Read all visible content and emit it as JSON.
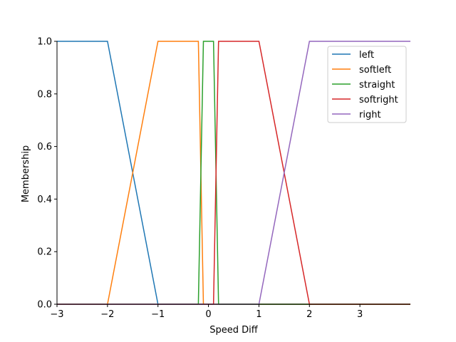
{
  "chart_data": {
    "type": "line",
    "title": "",
    "xlabel": "Speed Diff",
    "ylabel": "Membership",
    "xlim": [
      -3,
      4
    ],
    "ylim": [
      0,
      1
    ],
    "xticks": [
      -3,
      -2,
      -1,
      0,
      1,
      2,
      3
    ],
    "xtick_labels": [
      "−3",
      "−2",
      "−1",
      "0",
      "1",
      "2",
      "3"
    ],
    "yticks": [
      0,
      0.2,
      0.4,
      0.6,
      0.8,
      1.0
    ],
    "ytick_labels": [
      "0.0",
      "0.2",
      "0.4",
      "0.6",
      "0.8",
      "1.0"
    ],
    "grid": false,
    "legend_position": "top-right",
    "series": [
      {
        "name": "left",
        "color": "#1f77b4",
        "points": [
          [
            -3,
            1
          ],
          [
            -2,
            1
          ],
          [
            -1,
            0
          ],
          [
            4,
            0
          ]
        ]
      },
      {
        "name": "softleft",
        "color": "#ff7f0e",
        "points": [
          [
            -3,
            0
          ],
          [
            -2,
            0
          ],
          [
            -1,
            1
          ],
          [
            -0.2,
            1
          ],
          [
            -0.1,
            0
          ],
          [
            4,
            0
          ]
        ]
      },
      {
        "name": "straight",
        "color": "#2ca02c",
        "points": [
          [
            -3,
            0
          ],
          [
            -0.2,
            0
          ],
          [
            -0.1,
            1
          ],
          [
            0.1,
            1
          ],
          [
            0.2,
            0
          ],
          [
            4,
            0
          ]
        ]
      },
      {
        "name": "softright",
        "color": "#d62728",
        "points": [
          [
            -3,
            0
          ],
          [
            0.1,
            0
          ],
          [
            0.2,
            1
          ],
          [
            1,
            1
          ],
          [
            2,
            0
          ],
          [
            4,
            0
          ]
        ]
      },
      {
        "name": "right",
        "color": "#9467bd",
        "points": [
          [
            -3,
            0
          ],
          [
            1,
            0
          ],
          [
            2,
            1
          ],
          [
            4,
            1
          ]
        ]
      }
    ]
  }
}
